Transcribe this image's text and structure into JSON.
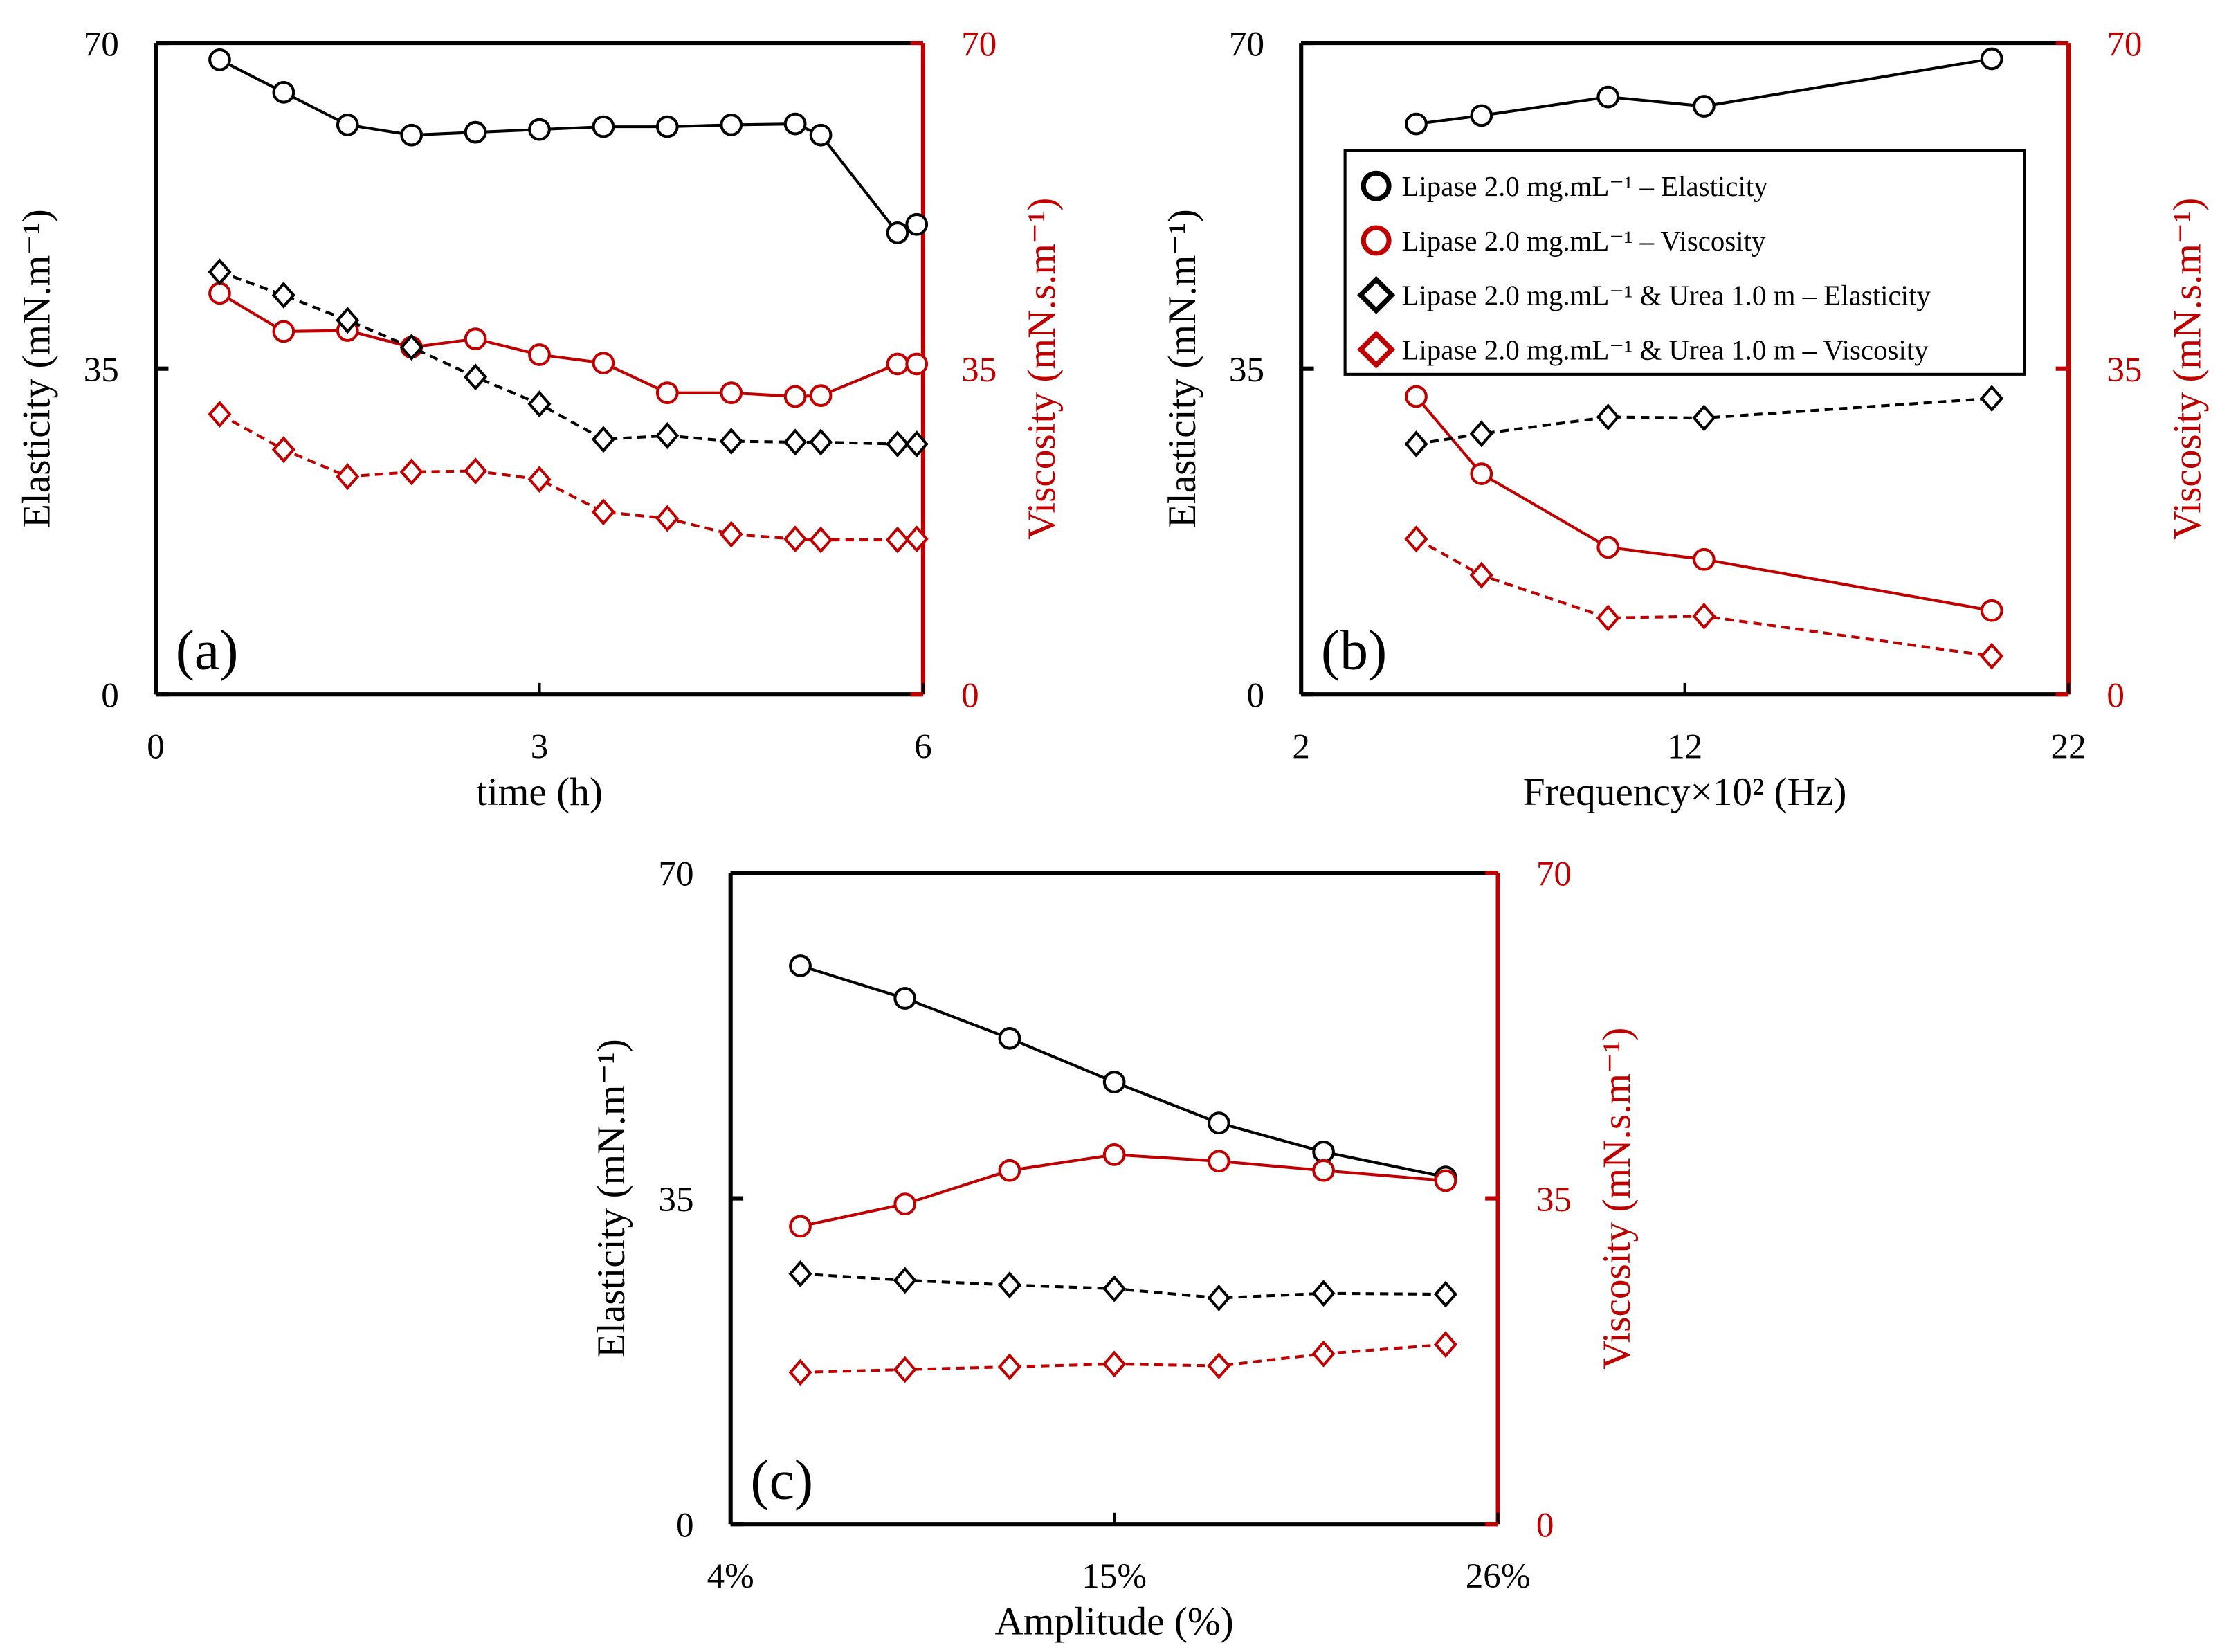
{
  "colors": {
    "elasticity": "#000000",
    "viscosity": "#c00000"
  },
  "legend": [
    {
      "label": "Lipase 2.0 mg.mL⁻¹ – Elasticity",
      "marker": "circle",
      "color": "#000000"
    },
    {
      "label": "Lipase 2.0 mg.mL⁻¹ – Viscosity",
      "marker": "circle",
      "color": "#c00000"
    },
    {
      "label": "Lipase 2.0 mg.mL⁻¹ & Urea 1.0 m – Elasticity",
      "marker": "diamond",
      "color": "#000000"
    },
    {
      "label": "Lipase 2.0 mg.mL⁻¹ & Urea 1.0 m – Viscosity",
      "marker": "diamond",
      "color": "#c00000"
    }
  ],
  "chart_data": [
    {
      "panel": "(a)",
      "type": "line",
      "xlabel": "time (h)",
      "ylabel": "Elasticity (mN.m⁻¹)",
      "y2label": "Viscosity (mN.s.m⁻¹)",
      "xlim": [
        0,
        6
      ],
      "xticks": [
        0,
        3,
        6
      ],
      "xticklabels": [
        "0",
        "3",
        "6"
      ],
      "ylim": [
        0,
        70
      ],
      "yticks": [
        0,
        35,
        70
      ],
      "y2lim": [
        0,
        70
      ],
      "y2ticks": [
        0,
        35,
        70
      ],
      "x": [
        0.5,
        1,
        1.5,
        2,
        2.5,
        3,
        3.5,
        4,
        4.5,
        5,
        5.2,
        5.8,
        5.95
      ],
      "series": [
        {
          "name": "Lipase 2.0 mg.mL⁻¹ – Elasticity",
          "values": [
            68.2,
            64.7,
            61.2,
            60.1,
            60.4,
            60.7,
            61.0,
            61.0,
            61.2,
            61.3,
            60.1,
            49.6,
            50.5
          ]
        },
        {
          "name": "Lipase 2.0 mg.mL⁻¹ – Viscosity",
          "values": [
            43.1,
            39.0,
            39.1,
            37.3,
            38.2,
            36.5,
            35.6,
            32.4,
            32.4,
            32.0,
            32.1,
            35.5,
            35.5
          ]
        },
        {
          "name": "Lipase 2.0 mg.mL⁻¹ & Urea 1.0 m – Elasticity",
          "values": [
            45.4,
            42.9,
            40.2,
            37.3,
            34.1,
            31.2,
            27.4,
            27.8,
            27.2,
            27.1,
            27.1,
            26.9,
            26.9
          ]
        },
        {
          "name": "Lipase 2.0 mg.mL⁻¹ & Urea 1.0 m – Viscosity",
          "values": [
            30.1,
            26.3,
            23.4,
            23.9,
            24.0,
            23.1,
            19.6,
            18.9,
            17.2,
            16.7,
            16.6,
            16.6,
            16.7
          ]
        }
      ]
    },
    {
      "panel": "(b)",
      "type": "line",
      "xlabel": "Frequency×10² (Hz)",
      "ylabel": "Elasticity (mN.m⁻¹)",
      "y2label": "Viscosity (mN.s.m⁻¹)",
      "xlim": [
        2,
        22
      ],
      "xticks": [
        2,
        12,
        22
      ],
      "xticklabels": [
        "2",
        "12",
        "22"
      ],
      "ylim": [
        0,
        70
      ],
      "yticks": [
        0,
        35,
        70
      ],
      "y2lim": [
        0,
        70
      ],
      "y2ticks": [
        0,
        35,
        70
      ],
      "legend_position": "upper-center",
      "x": [
        5,
        6.7,
        10,
        12.5,
        20
      ],
      "series": [
        {
          "name": "Lipase 2.0 mg.mL⁻¹ – Elasticity",
          "values": [
            61.3,
            62.2,
            64.2,
            63.2,
            68.3
          ]
        },
        {
          "name": "Lipase 2.0 mg.mL⁻¹ – Viscosity",
          "values": [
            32.0,
            23.7,
            15.8,
            14.5,
            9.0
          ]
        },
        {
          "name": "Lipase 2.0 mg.mL⁻¹ & Urea 1.0 m – Elasticity",
          "values": [
            26.9,
            28.0,
            29.8,
            29.7,
            31.8
          ]
        },
        {
          "name": "Lipase 2.0 mg.mL⁻¹ & Urea 1.0 m – Viscosity",
          "values": [
            16.7,
            12.8,
            8.2,
            8.4,
            4.1
          ]
        }
      ]
    },
    {
      "panel": "(c)",
      "type": "line",
      "xlabel": "Amplitude (%)",
      "ylabel": "Elasticity (mN.m⁻¹)",
      "y2label": "Viscosity (mN.s.m⁻¹)",
      "xlim": [
        4,
        26
      ],
      "xticks": [
        4,
        15,
        26
      ],
      "xticklabels": [
        "4%",
        "15%",
        "26%"
      ],
      "ylim": [
        0,
        70
      ],
      "yticks": [
        0,
        35,
        70
      ],
      "y2lim": [
        0,
        70
      ],
      "y2ticks": [
        0,
        35,
        70
      ],
      "x": [
        6,
        9,
        12,
        15,
        18,
        21,
        24.5
      ],
      "series": [
        {
          "name": "Lipase 2.0 mg.mL⁻¹ – Elasticity",
          "values": [
            60.0,
            56.5,
            52.2,
            47.5,
            43.1,
            40.0,
            37.3
          ]
        },
        {
          "name": "Lipase 2.0 mg.mL⁻¹ – Viscosity",
          "values": [
            32.0,
            34.4,
            38.0,
            39.7,
            39.0,
            38.0,
            36.9
          ]
        },
        {
          "name": "Lipase 2.0 mg.mL⁻¹ & Urea 1.0 m – Elasticity",
          "values": [
            26.9,
            26.2,
            25.7,
            25.3,
            24.3,
            24.8,
            24.7
          ]
        },
        {
          "name": "Lipase 2.0 mg.mL⁻¹ & Urea 1.0 m – Viscosity",
          "values": [
            16.3,
            16.6,
            16.9,
            17.2,
            17.0,
            18.3,
            19.3
          ]
        }
      ]
    }
  ]
}
